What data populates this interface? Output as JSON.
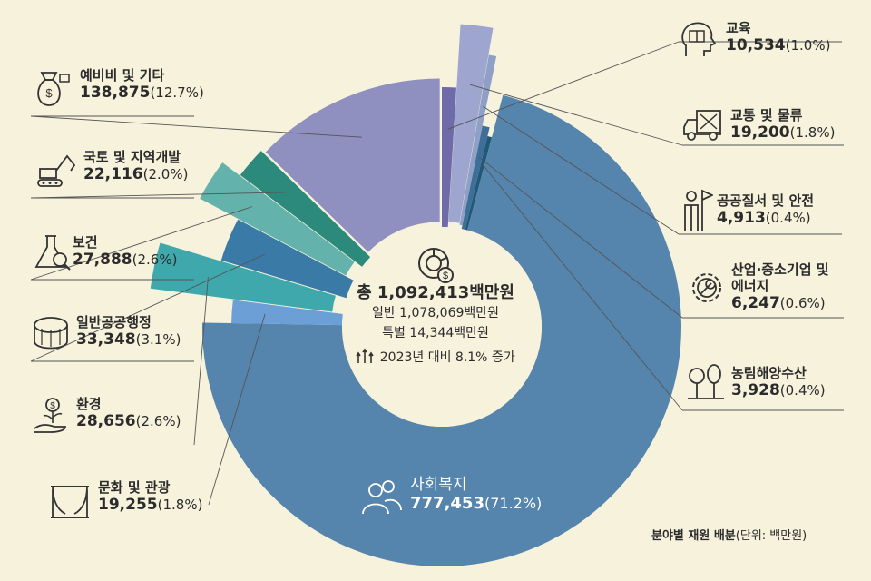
{
  "chart_data": {
    "type": "pie",
    "title": "분야별 재원 배분",
    "unit": "(단위: 백만원)",
    "center": {
      "total": "총 1,092,413백만원",
      "general": "일반 1,078,069백만원",
      "special": "특별 14,344백만원",
      "growth": "2023년 대비 8.1% 증가"
    },
    "slices": [
      {
        "name": "교육",
        "value": 10534,
        "value_text": "10,534",
        "pct": "(1.0%)",
        "color": "#6e6ba8"
      },
      {
        "name": "교통 및 물류",
        "value": 19200,
        "value_text": "19,200",
        "pct": "(1.8%)",
        "color": "#9ea6d0"
      },
      {
        "name": "공공질서 및 안전",
        "value": 4913,
        "value_text": "4,913",
        "pct": "(0.4%)",
        "color": "#8fa0c8"
      },
      {
        "name": "산업·중소기업 및 에너지",
        "value": 6247,
        "value_text": "6,247",
        "pct": "(0.6%)",
        "color": "#3f6f98"
      },
      {
        "name": "농림해양수산",
        "value": 3928,
        "value_text": "3,928",
        "pct": "(0.4%)",
        "color": "#1f5878"
      },
      {
        "name": "사회복지",
        "value": 777453,
        "value_text": "777,453",
        "pct": "(71.2%)",
        "color": "#5584ad"
      },
      {
        "name": "문화 및 관광",
        "value": 19255,
        "value_text": "19,255",
        "pct": "(1.8%)",
        "color": "#6b9fd6"
      },
      {
        "name": "환경",
        "value": 28656,
        "value_text": "28,656",
        "pct": "(2.6%)",
        "color": "#3fa8ad"
      },
      {
        "name": "일반공공행정",
        "value": 33348,
        "value_text": "33,348",
        "pct": "(3.1%)",
        "color": "#3a7aa6"
      },
      {
        "name": "보건",
        "value": 27888,
        "value_text": "27,888",
        "pct": "(2.6%)",
        "color": "#63b2ab"
      },
      {
        "name": "국토 및 지역개발",
        "value": 22116,
        "value_text": "22,116",
        "pct": "(2.0%)",
        "color": "#2c8a7c"
      },
      {
        "name": "예비비 및 기타",
        "value": 138875,
        "value_text": "138,875",
        "pct": "(12.7%)",
        "color": "#8f8fc0"
      }
    ]
  }
}
